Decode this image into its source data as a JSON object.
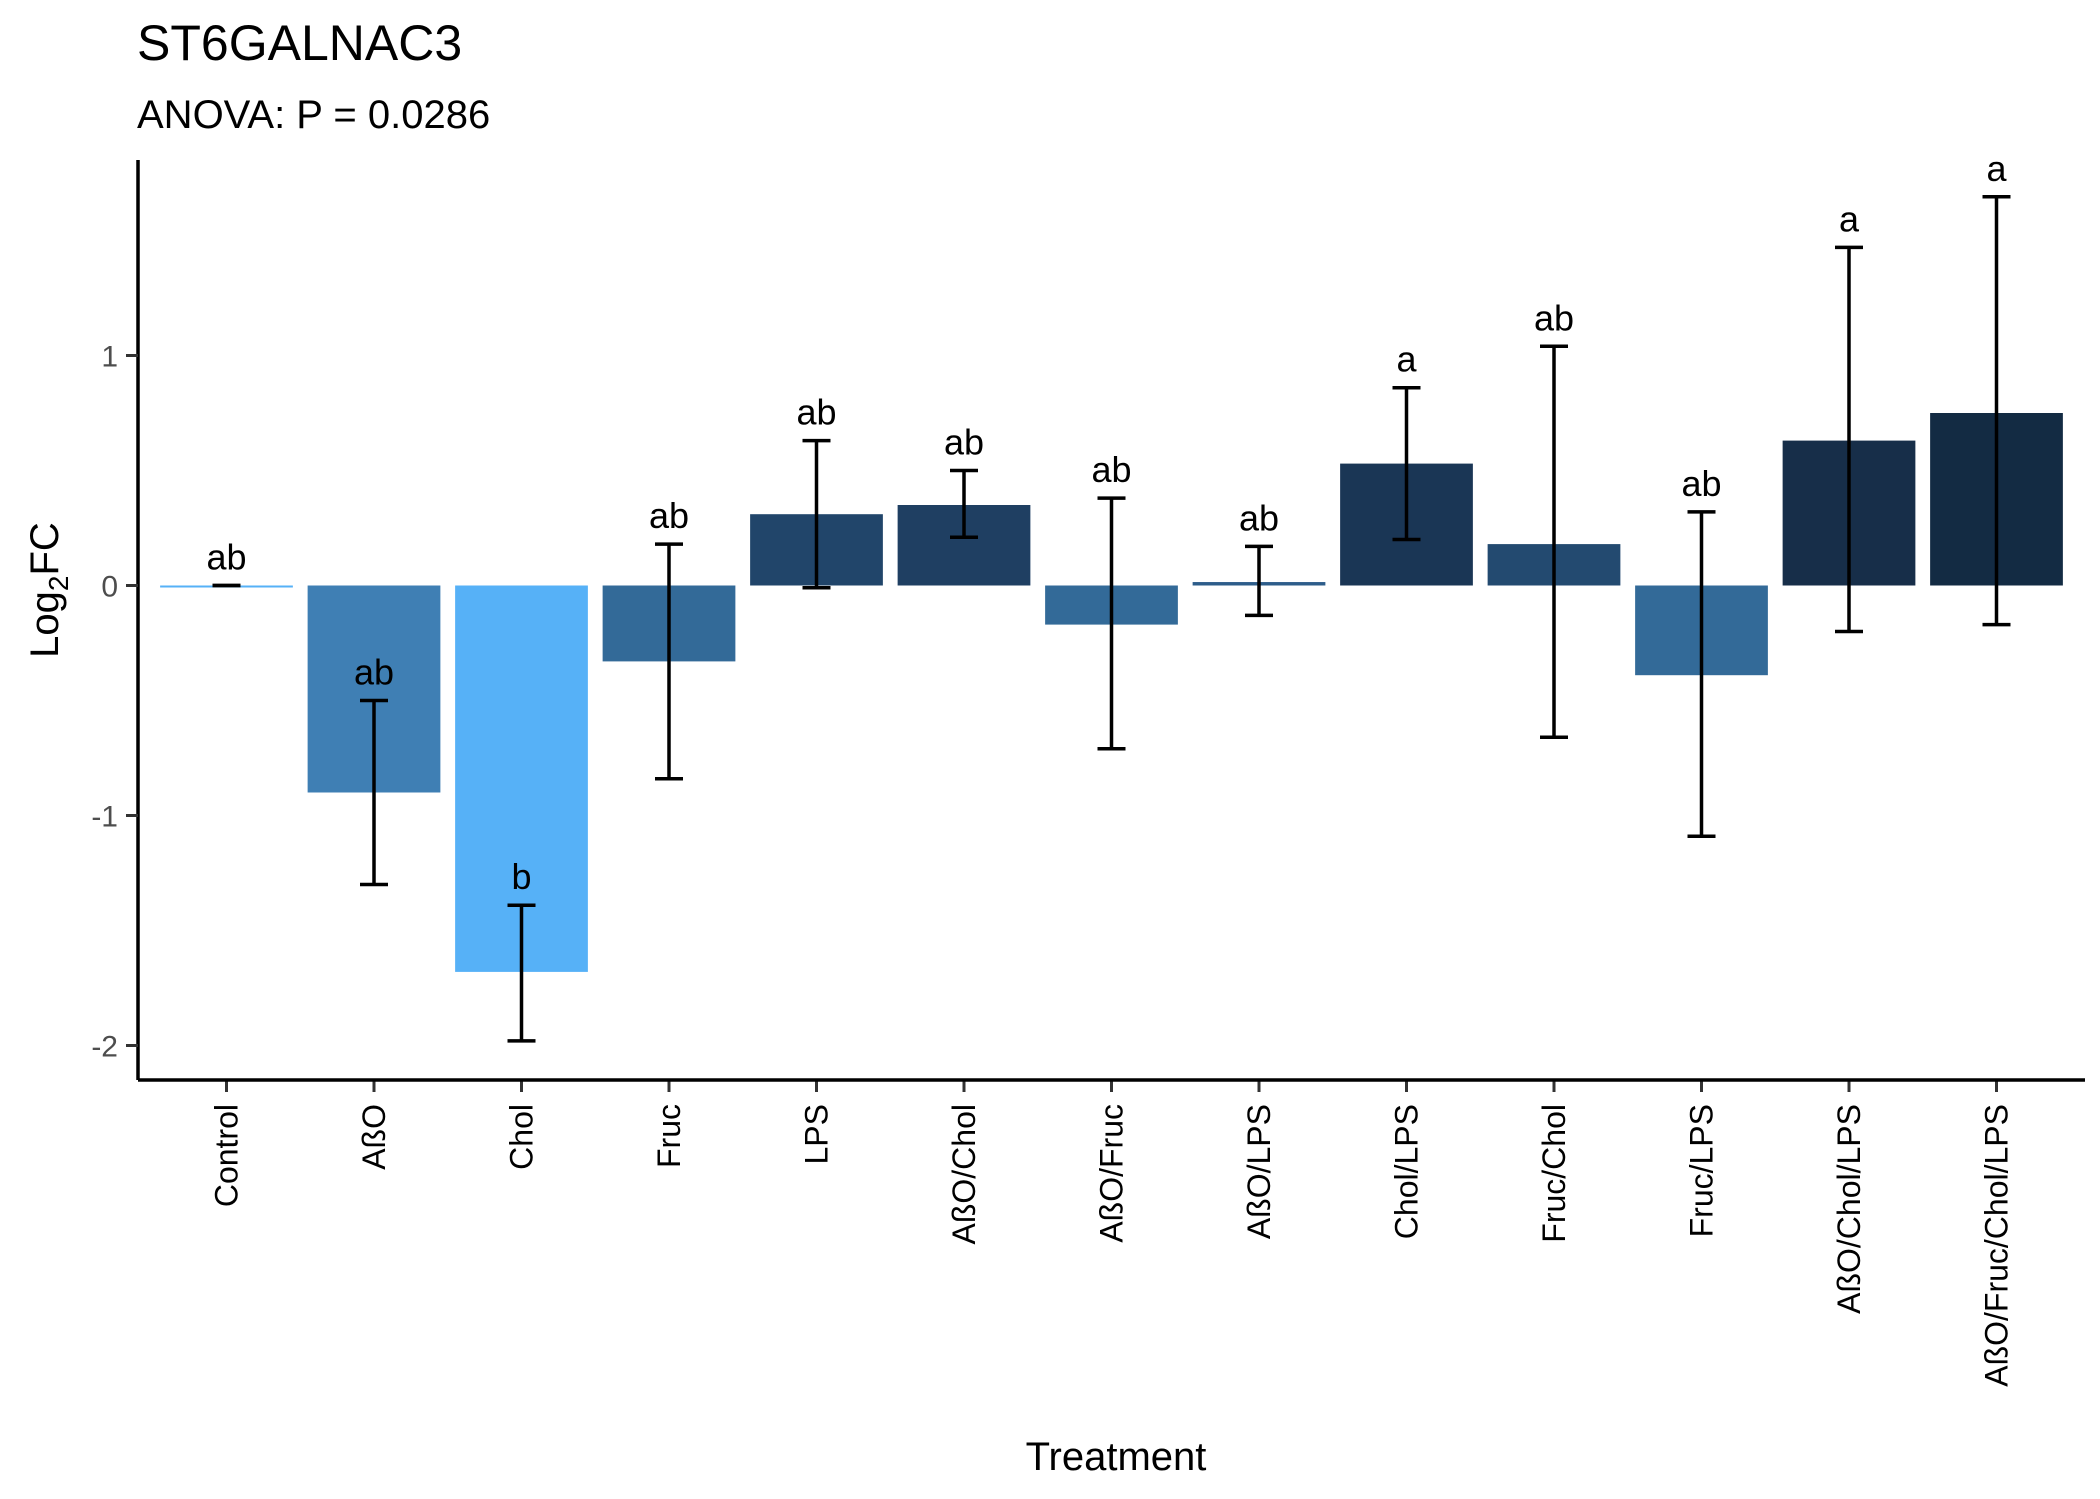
{
  "chart_data": {
    "type": "bar",
    "title": "ST6GALNAC3",
    "subtitle": "ANOVA: P = 0.0286",
    "xlabel": "Treatment",
    "ylabel": "Log",
    "ylabel_subscript": "2",
    "ylabel_suffix": "FC",
    "ylim": [
      -2.15,
      1.85
    ],
    "yticks": [
      -2,
      -1,
      0,
      1
    ],
    "ytick_labels": [
      "-2",
      "-1",
      "0",
      "1"
    ],
    "grid": false,
    "legend": "none",
    "categories": [
      "Control",
      "AßO",
      "Chol",
      "Fruc",
      "LPS",
      "AßO/Chol",
      "AßO/Fruc",
      "AßO/LPS",
      "Chol/LPS",
      "Fruc/Chol",
      "Fruc/LPS",
      "AßO/Chol/LPS",
      "AßO/Fruc/Chol/LPS"
    ],
    "values": [
      0,
      -0.9,
      -1.68,
      -0.33,
      0.31,
      0.35,
      -0.17,
      0.015,
      0.53,
      0.18,
      -0.39,
      0.63,
      0.75
    ],
    "error_lower": [
      0,
      -1.3,
      -1.98,
      -0.84,
      -0.01,
      0.21,
      -0.71,
      -0.13,
      0.2,
      -0.66,
      -1.09,
      -0.2,
      -0.17
    ],
    "error_upper": [
      0,
      -0.5,
      -1.39,
      0.18,
      0.63,
      0.5,
      0.38,
      0.17,
      0.86,
      1.04,
      0.32,
      1.47,
      1.69
    ],
    "significance_labels": [
      "ab",
      "ab",
      "b",
      "ab",
      "ab",
      "ab",
      "ab",
      "ab",
      "a",
      "ab",
      "ab",
      "a",
      "a"
    ],
    "colors": [
      "#56b1f7",
      "#3f7fb4",
      "#56b1f7",
      "#336a98",
      "#21456a",
      "#1f3f62",
      "#336a98",
      "#2d5d8a",
      "#1a3655",
      "#234a70",
      "#336a98",
      "#172e49",
      "#132b43"
    ]
  }
}
